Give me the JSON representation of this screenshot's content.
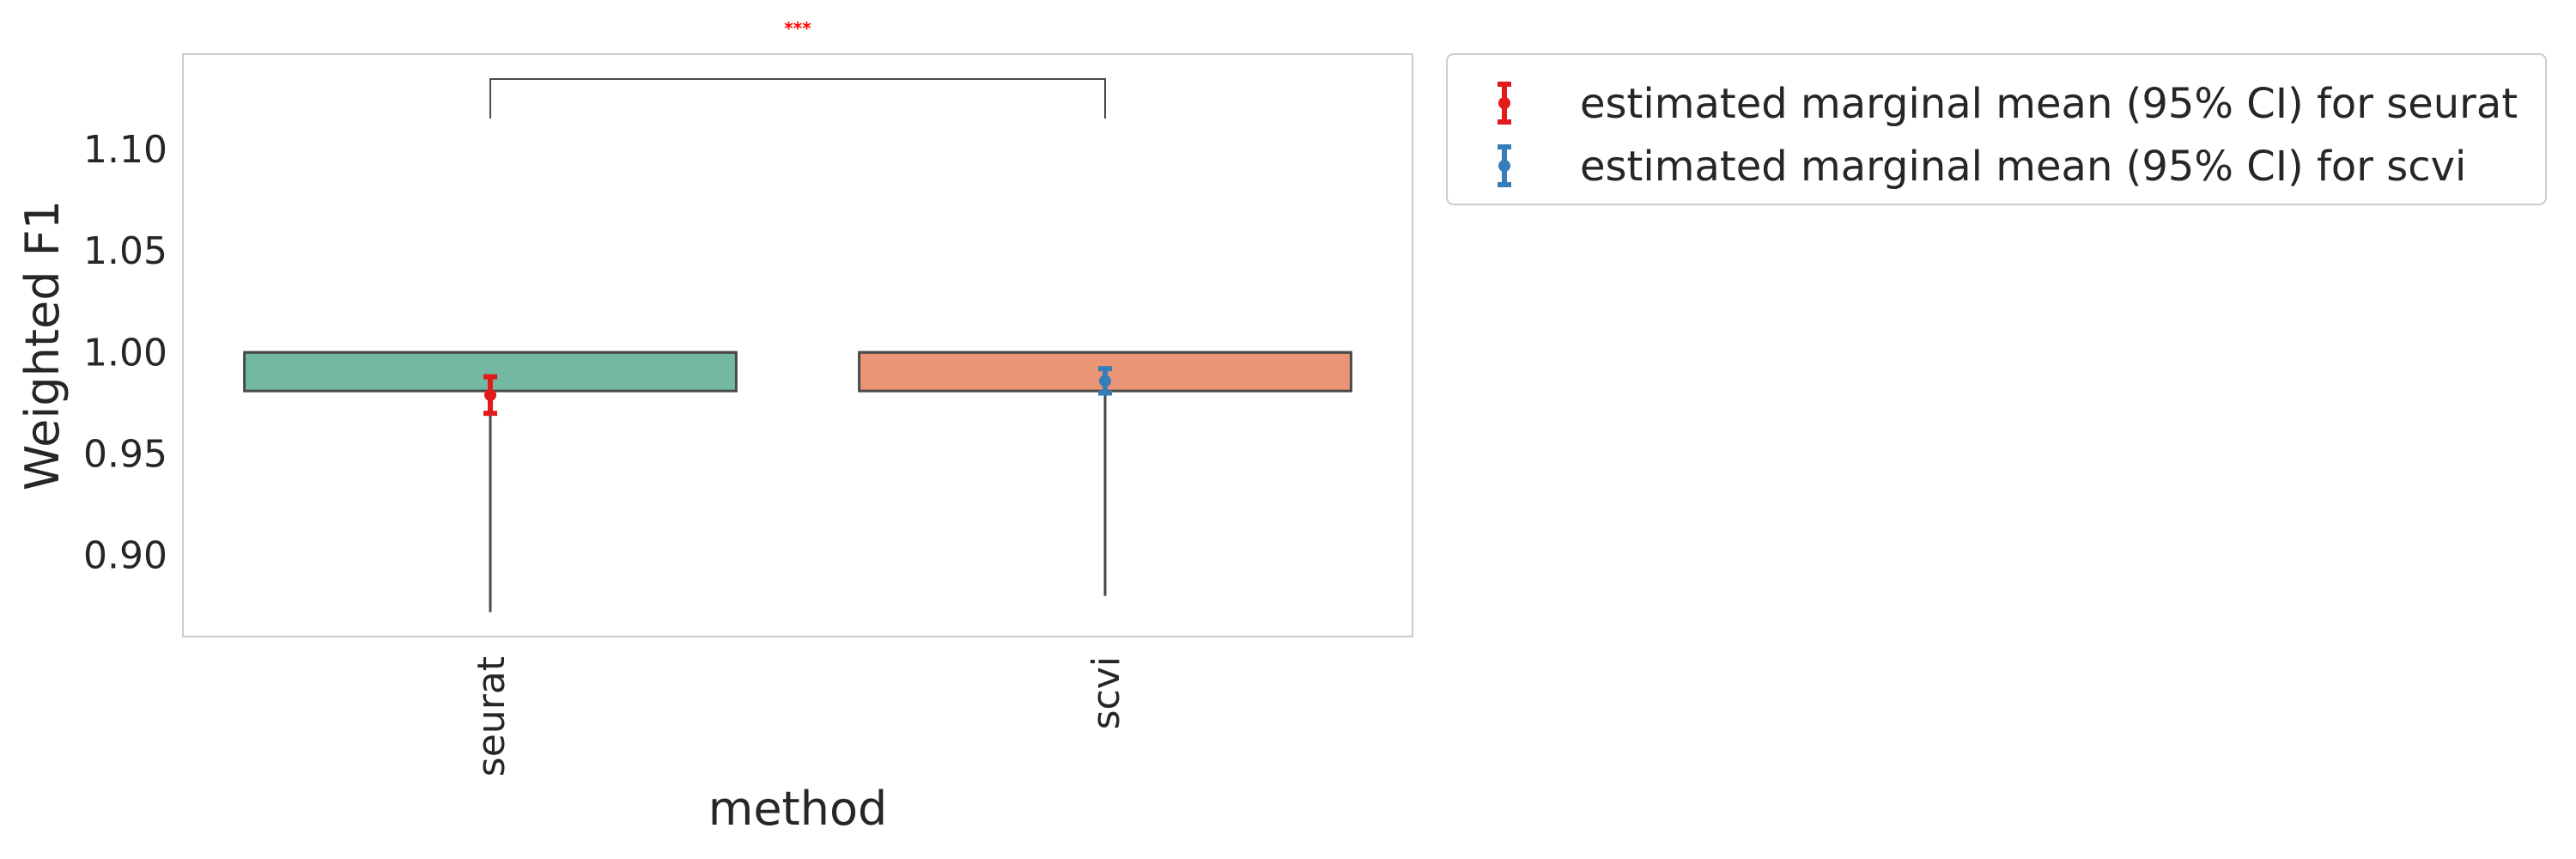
{
  "chart_data": {
    "type": "box",
    "xlabel": "method",
    "ylabel": "Weighted F1",
    "categories": [
      "seurat",
      "scvi"
    ],
    "ylim": [
      0.86,
      1.147
    ],
    "yticks": [
      0.9,
      0.95,
      1.0,
      1.05,
      1.1
    ],
    "ytick_labels": [
      "0.90",
      "0.95",
      "1.00",
      "1.05",
      "1.10"
    ],
    "grid": false,
    "legend_position": "outside-right-top",
    "boxes": [
      {
        "category": "seurat",
        "color": "#72b8a2",
        "q1": 0.981,
        "median": 1.0,
        "q3": 1.0,
        "whisker_low": 0.872,
        "whisker_high": 1.0
      },
      {
        "category": "scvi",
        "color": "#ea9576",
        "q1": 0.981,
        "median": 1.0,
        "q3": 1.0,
        "whisker_low": 0.88,
        "whisker_high": 1.0
      }
    ],
    "emmeans": [
      {
        "category": "seurat",
        "mean": 0.979,
        "ci_low": 0.97,
        "ci_high": 0.988,
        "color": "#e31a1c",
        "label": "estimated marginal mean (95% CI) for seurat"
      },
      {
        "category": "scvi",
        "mean": 0.986,
        "ci_low": 0.98,
        "ci_high": 0.992,
        "color": "#377eb8",
        "label": "estimated marginal mean (95% CI) for scvi"
      }
    ],
    "significance": {
      "from": "seurat",
      "to": "scvi",
      "label": "***",
      "color": "#ff0000"
    }
  }
}
